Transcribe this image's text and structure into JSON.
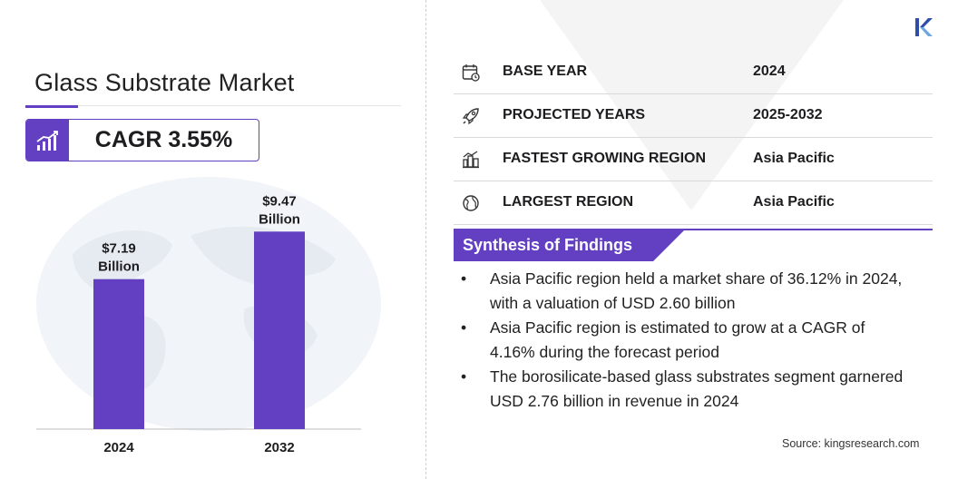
{
  "title": "Glass Substrate Market",
  "cagr": {
    "label": "CAGR 3.55%",
    "icon": "growth-chart-icon"
  },
  "chart_data": {
    "type": "bar",
    "categories": [
      "2024",
      "2032"
    ],
    "values": [
      7.19,
      9.47
    ],
    "data_labels": [
      [
        "$7.19",
        "Billion"
      ],
      [
        "$9.47",
        "Billion"
      ]
    ],
    "title": "",
    "xlabel": "",
    "ylabel": "",
    "ylim": [
      0,
      10.7
    ],
    "grid": false,
    "bar_color": "#6340c2"
  },
  "info": [
    {
      "icon": "calendar-icon",
      "label": "BASE YEAR",
      "value": "2024"
    },
    {
      "icon": "rocket-icon",
      "label": "PROJECTED YEARS",
      "value": "2025-2032"
    },
    {
      "icon": "city-growth-icon",
      "label": "FASTEST GROWING REGION",
      "value": "Asia Pacific"
    },
    {
      "icon": "globe-icon",
      "label": "LARGEST REGION",
      "value": "Asia Pacific"
    }
  ],
  "synthesis": {
    "title": "Synthesis of Findings",
    "bullet": "•",
    "items": [
      "Asia Pacific region held a market share of 36.12% in 2024, with a valuation of USD 2.60 billion",
      "Asia Pacific region is estimated to grow at a CAGR of 4.16% during the forecast period",
      "The borosilicate-based glass substrates segment garnered USD 2.76 billion in revenue in 2024"
    ]
  },
  "source": "Source:  kingsresearch.com",
  "colors": {
    "accent": "#6340c2",
    "logo": "#2f4ea8"
  }
}
